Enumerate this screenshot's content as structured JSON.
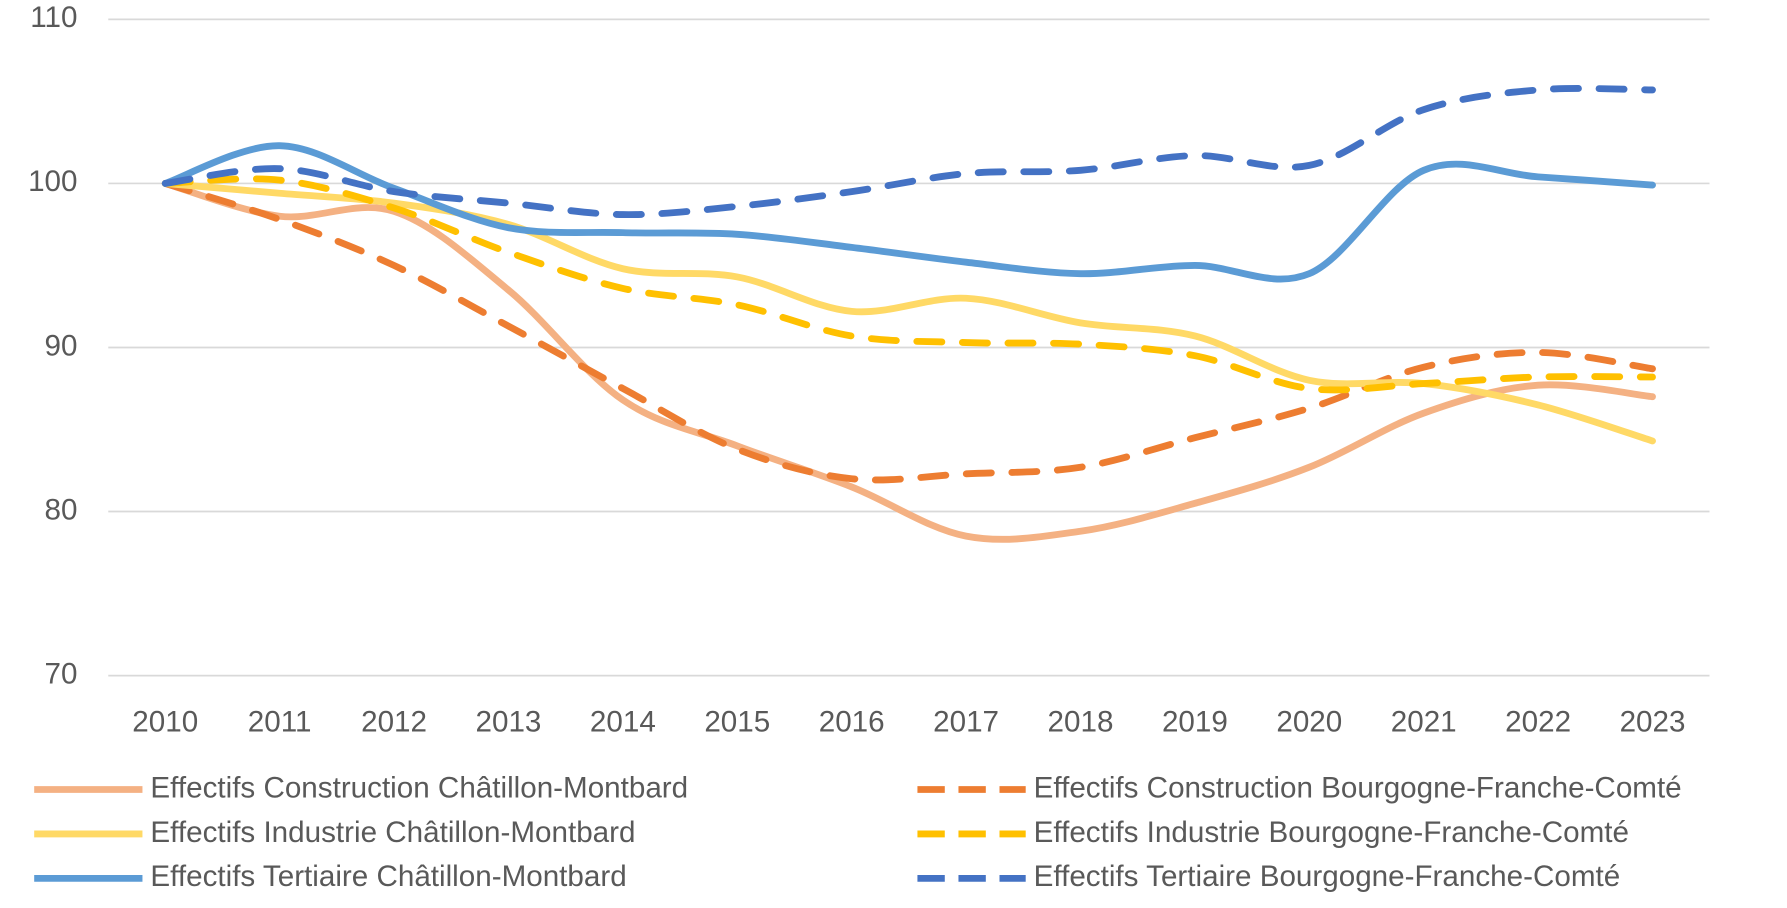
{
  "chart_data": {
    "type": "line",
    "categories": [
      "2010",
      "2011",
      "2012",
      "2013",
      "2014",
      "2015",
      "2016",
      "2017",
      "2018",
      "2019",
      "2020",
      "2021",
      "2022",
      "2023"
    ],
    "ylim": [
      70,
      110
    ],
    "yticks": [
      70,
      80,
      90,
      100,
      110
    ],
    "grid": true,
    "series": [
      {
        "name": "Effectifs Construction Châtillon-Montbard",
        "color": "#f4b183",
        "dashed": false,
        "values": [
          100,
          98,
          98.3,
          93.5,
          86.8,
          84,
          81.5,
          78.5,
          78.8,
          80.5,
          82.7,
          86,
          87.7,
          87
        ]
      },
      {
        "name": "Effectifs Construction Bourgogne-Franche-Comté",
        "color": "#ed7d31",
        "dashed": true,
        "values": [
          100,
          97.8,
          95,
          91.3,
          87.5,
          83.8,
          82,
          82.3,
          82.7,
          84.5,
          86.3,
          88.8,
          89.7,
          88.7
        ]
      },
      {
        "name": "Effectifs Industrie Châtillon-Montbard",
        "color": "#ffd966",
        "dashed": false,
        "values": [
          100,
          99.4,
          98.8,
          97.5,
          94.8,
          94.3,
          92.2,
          93,
          91.5,
          90.7,
          88,
          87.8,
          86.5,
          84.3
        ]
      },
      {
        "name": "Effectifs Industrie Bourgogne-Franche-Comté",
        "color": "#ffc000",
        "dashed": true,
        "values": [
          100,
          100.2,
          98.5,
          95.8,
          93.6,
          92.6,
          90.7,
          90.3,
          90.2,
          89.5,
          87.5,
          87.8,
          88.2,
          88.2
        ]
      },
      {
        "name": "Effectifs Tertiaire Châtillon-Montbard",
        "color": "#5b9bd5",
        "dashed": false,
        "values": [
          100,
          102.3,
          99.7,
          97.3,
          97,
          96.9,
          96.1,
          95.2,
          94.5,
          95,
          94.5,
          100.8,
          100.4,
          99.9
        ]
      },
      {
        "name": "Effectifs Tertiaire Bourgogne-Franche-Comté",
        "color": "#4472c4",
        "dashed": true,
        "values": [
          100,
          100.9,
          99.5,
          98.8,
          98.1,
          98.6,
          99.5,
          100.6,
          100.8,
          101.7,
          101.1,
          104.5,
          105.7,
          105.7
        ]
      }
    ]
  }
}
